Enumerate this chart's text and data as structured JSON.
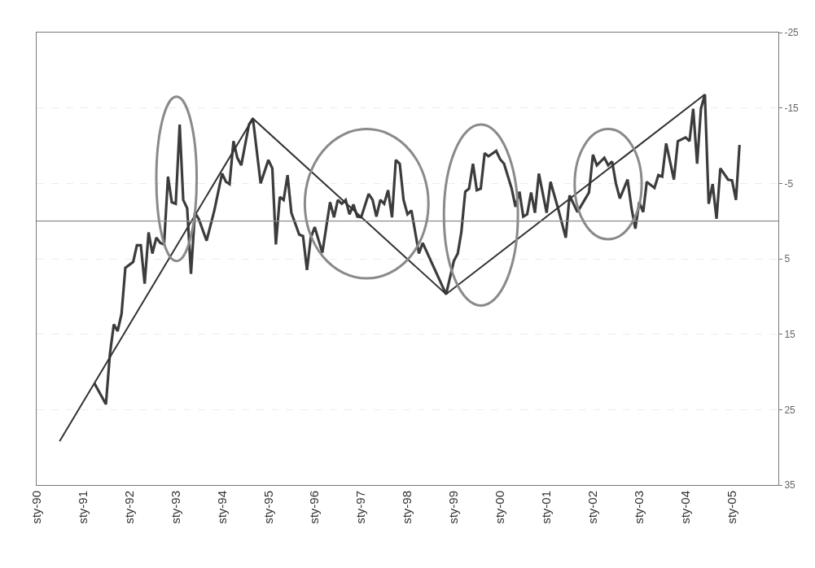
{
  "chart_data": {
    "type": "line",
    "xlim": [
      "1990-01-01",
      "2006-01-01"
    ],
    "xticks": [
      {
        "value": "1990-01-01",
        "label": "sty-90"
      },
      {
        "value": "1991-01-01",
        "label": "sty-91"
      },
      {
        "value": "1992-01-01",
        "label": "sty-92"
      },
      {
        "value": "1993-01-01",
        "label": "sty-93"
      },
      {
        "value": "1994-01-01",
        "label": "sty-94"
      },
      {
        "value": "1995-01-01",
        "label": "sty-95"
      },
      {
        "value": "1996-01-01",
        "label": "sty-96"
      },
      {
        "value": "1997-01-01",
        "label": "sty-97"
      },
      {
        "value": "1998-01-01",
        "label": "sty-98"
      },
      {
        "value": "1999-01-01",
        "label": "sty-99"
      },
      {
        "value": "2000-01-01",
        "label": "sty-00"
      },
      {
        "value": "2001-01-01",
        "label": "sty-01"
      },
      {
        "value": "2002-01-01",
        "label": "sty-02"
      },
      {
        "value": "2003-01-01",
        "label": "sty-03"
      },
      {
        "value": "2004-01-01",
        "label": "sty-04"
      },
      {
        "value": "2005-01-01",
        "label": "sty-05"
      }
    ],
    "ylim": [
      35,
      -25
    ],
    "yticks": [
      -25,
      -15,
      -5,
      5,
      15,
      25,
      35
    ],
    "grid": "y",
    "marker": "none",
    "line_style": "solid",
    "ref_lines": [
      {
        "axis": "y",
        "value": 0,
        "color": "#8c8c8c"
      }
    ],
    "series": [
      {
        "color": "#3c3c3c",
        "x": [
          "1991-04",
          "1991-07",
          "1991-08",
          "1991-09",
          "1991-10",
          "1991-11",
          "1991-12",
          "1992-02",
          "1992-03",
          "1992-04",
          "1992-05",
          "1992-06",
          "1992-07",
          "1992-08",
          "1992-09",
          "1992-10",
          "1992-11",
          "1992-12",
          "1993-01",
          "1993-02",
          "1993-03",
          "1993-04",
          "1993-05",
          "1993-06",
          "1993-07",
          "1993-09",
          "1993-11",
          "1994-01",
          "1994-02",
          "1994-03",
          "1994-04",
          "1994-05",
          "1994-06",
          "1994-08",
          "1994-09",
          "1994-11",
          "1995-01",
          "1995-02",
          "1995-03",
          "1995-04",
          "1995-05",
          "1995-06",
          "1995-07",
          "1995-09",
          "1995-10",
          "1995-11",
          "1995-12",
          "1996-01",
          "1996-03",
          "1996-04",
          "1996-05",
          "1996-06",
          "1996-07",
          "1996-08",
          "1996-09",
          "1996-10",
          "1996-11",
          "1996-12",
          "1997-01",
          "1997-03",
          "1997-04",
          "1997-05",
          "1997-06",
          "1997-07",
          "1997-08",
          "1997-09",
          "1997-10",
          "1997-11",
          "1997-12",
          "1998-01",
          "1998-02",
          "1998-04",
          "1998-05",
          "1998-11",
          "1999-01",
          "1999-02",
          "1999-03",
          "1999-04",
          "1999-05",
          "1999-06",
          "1999-07",
          "1999-08",
          "1999-09",
          "1999-10",
          "1999-12",
          "2000-01",
          "2000-02",
          "2000-04",
          "2000-05",
          "2000-06",
          "2000-07",
          "2000-08",
          "2000-09",
          "2000-10",
          "2000-11",
          "2001-01",
          "2001-02",
          "2001-04",
          "2001-06",
          "2001-07",
          "2001-09",
          "2001-12",
          "2002-01",
          "2002-02",
          "2002-04",
          "2002-05",
          "2002-06",
          "2002-07",
          "2002-08",
          "2002-10",
          "2002-11",
          "2002-12",
          "2003-01",
          "2003-02",
          "2003-03",
          "2003-05",
          "2003-06",
          "2003-07",
          "2003-08",
          "2003-10",
          "2003-11",
          "2004-01",
          "2004-02",
          "2004-03",
          "2004-04",
          "2004-05",
          "2004-06",
          "2004-07",
          "2004-08",
          "2004-09",
          "2004-10",
          "2004-12",
          "2005-01",
          "2005-02",
          "2005-03"
        ],
        "values": [
          21.5,
          24.3,
          17.7,
          13.7,
          14.6,
          12.3,
          6.2,
          5.4,
          3.2,
          3.2,
          8.3,
          1.5,
          4.3,
          2.2,
          2.9,
          3.1,
          -5.9,
          -2.5,
          -2.3,
          -12.8,
          -2.8,
          -1.7,
          7.0,
          -1.1,
          -0.3,
          2.6,
          -1.4,
          -6.3,
          -5.2,
          -4.9,
          -10.6,
          -8.4,
          -7.4,
          -12.8,
          -13.6,
          -5.0,
          -8.1,
          -7.0,
          3.1,
          -3.2,
          -2.8,
          -6.1,
          -1.1,
          1.8,
          2.0,
          6.5,
          2.2,
          0.8,
          4.2,
          0.8,
          -2.5,
          -0.5,
          -2.8,
          -2.3,
          -2.8,
          -0.9,
          -2.2,
          -0.6,
          -0.5,
          -3.6,
          -2.8,
          -0.6,
          -2.8,
          -2.3,
          -4.1,
          -0.5,
          -8.1,
          -7.6,
          -2.8,
          -0.9,
          -1.4,
          4.3,
          2.9,
          9.7,
          5.3,
          4.3,
          1.5,
          -3.9,
          -4.3,
          -7.6,
          -4.1,
          -4.3,
          -9.0,
          -8.6,
          -9.3,
          -8.2,
          -7.6,
          -4.3,
          -1.9,
          -3.9,
          -0.6,
          -0.9,
          -3.8,
          -1.1,
          -6.3,
          -1.1,
          -5.2,
          -1.7,
          2.2,
          -3.4,
          -1.2,
          -3.8,
          -8.8,
          -7.4,
          -8.4,
          -7.4,
          -7.9,
          -5.0,
          -3.0,
          -5.5,
          -1.7,
          1.0,
          -2.5,
          -1.2,
          -5.2,
          -4.4,
          -6.1,
          -5.9,
          -10.3,
          -5.5,
          -10.6,
          -11.1,
          -10.6,
          -14.9,
          -7.6,
          -14.9,
          -16.8,
          -2.3,
          -4.9,
          -0.3,
          -7.0,
          -5.5,
          -5.4,
          -2.8,
          -10.1
        ]
      },
      {
        "type": "line",
        "color": "#333333",
        "x": [
          "1990-07",
          "1994-09",
          "1998-11",
          "2004-06"
        ],
        "values": [
          29.2,
          -13.6,
          9.7,
          -16.8
        ]
      }
    ]
  }
}
